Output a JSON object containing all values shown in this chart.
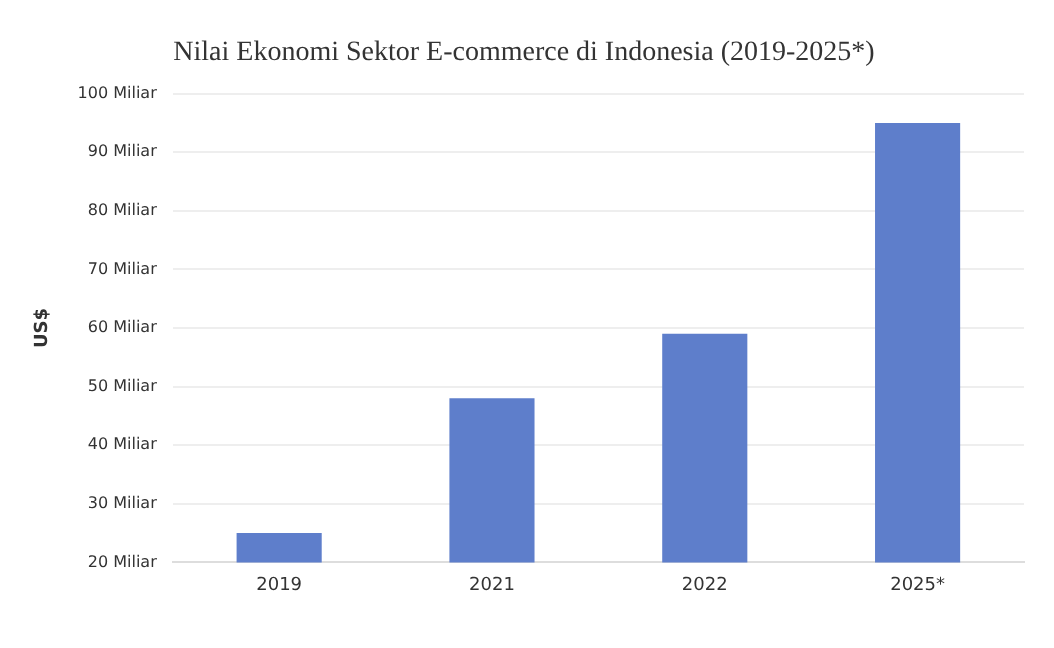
{
  "chart_data": {
    "type": "bar",
    "title": "Nilai Ekonomi Sektor E-commerce di Indonesia (2019-2025*)",
    "ylabel": "US$",
    "categories": [
      "2019",
      "2021",
      "2022",
      "2025*"
    ],
    "values": [
      25,
      48,
      59,
      95
    ],
    "color": "#5e7ecb",
    "ylim": [
      20,
      100
    ],
    "yticks": [
      {
        "value": 20,
        "label": "20 Miliar"
      },
      {
        "value": 30,
        "label": "30 Miliar"
      },
      {
        "value": 40,
        "label": "40 Miliar"
      },
      {
        "value": 50,
        "label": "50 Miliar"
      },
      {
        "value": 60,
        "label": "60 Miliar"
      },
      {
        "value": 70,
        "label": "70 Miliar"
      },
      {
        "value": 80,
        "label": "80 Miliar"
      },
      {
        "value": 90,
        "label": "90 Miliar"
      },
      {
        "value": 100,
        "label": "100 Miliar"
      }
    ],
    "grid": "y",
    "legend": false
  }
}
